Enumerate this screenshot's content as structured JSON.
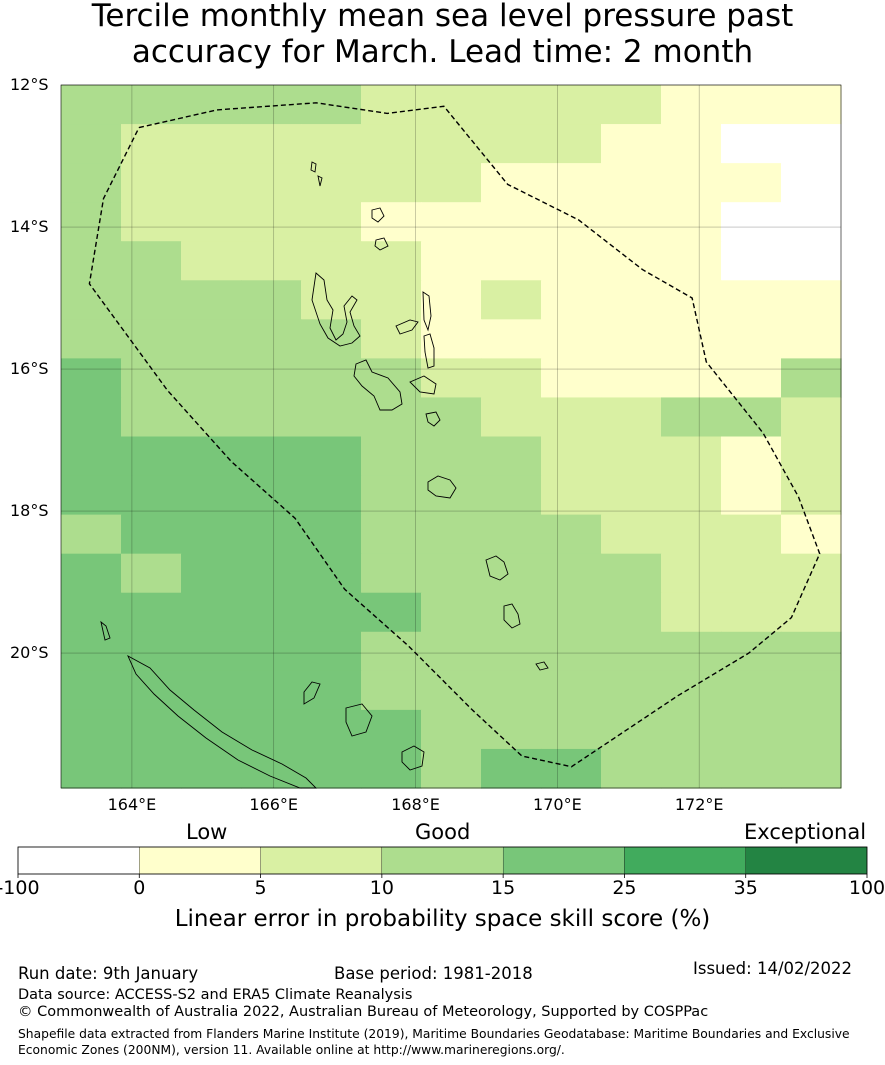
{
  "title_line1": "Tercile monthly mean sea level pressure past",
  "title_line2": "accuracy for March. Lead time: 2 month",
  "map": {
    "lon_range": [
      163.0,
      174.0
    ],
    "lat_range": [
      -21.9,
      -12.0
    ],
    "lat_ticks": [
      {
        "value": -12,
        "label": "12°S"
      },
      {
        "value": -14,
        "label": "14°S"
      },
      {
        "value": -16,
        "label": "16°S"
      },
      {
        "value": -18,
        "label": "18°S"
      },
      {
        "value": -20,
        "label": "20°S"
      }
    ],
    "lon_ticks": [
      {
        "value": 164,
        "label": "164°E"
      },
      {
        "value": 166,
        "label": "166°E"
      },
      {
        "value": 168,
        "label": "168°E"
      },
      {
        "value": 170,
        "label": "170°E"
      },
      {
        "value": 172,
        "label": "172°E"
      }
    ],
    "grid_cols": 13,
    "grid_rows": 18,
    "grid_note": "class index per cell: 0=<0, 1=0-5, 2=5-10, 3=10-15, 4=15-25, 5=25-35, 6=35-100",
    "grid": [
      "3333322222111",
      "3222222221100",
      "3222222111110",
      "3222211111100",
      "3322221111100",
      "3333221211111",
      "3333321111111",
      "4333332211113",
      "4333333222332",
      "4444433322212",
      "4444433322212",
      "3444433332221",
      "4344433333222",
      "4444443333222",
      "4444433333333",
      "4444433333333",
      "4444443333333",
      "4444443443333"
    ],
    "eez_boundary": [
      [
        164.1,
        -12.6
      ],
      [
        165.2,
        -12.35
      ],
      [
        166.6,
        -12.25
      ],
      [
        167.6,
        -12.4
      ],
      [
        168.4,
        -12.3
      ],
      [
        169.3,
        -13.4
      ],
      [
        170.3,
        -13.9
      ],
      [
        171.2,
        -14.6
      ],
      [
        171.9,
        -15.0
      ],
      [
        172.1,
        -15.9
      ],
      [
        172.9,
        -16.9
      ],
      [
        173.4,
        -17.8
      ],
      [
        173.7,
        -18.6
      ],
      [
        173.3,
        -19.5
      ],
      [
        172.7,
        -20.0
      ],
      [
        171.7,
        -20.6
      ],
      [
        170.8,
        -21.2
      ],
      [
        170.2,
        -21.6
      ],
      [
        169.5,
        -21.45
      ],
      [
        168.8,
        -20.8
      ],
      [
        167.9,
        -19.9
      ],
      [
        167.0,
        -19.1
      ],
      [
        166.3,
        -18.1
      ],
      [
        165.4,
        -17.3
      ],
      [
        164.5,
        -16.3
      ],
      [
        163.4,
        -14.8
      ],
      [
        163.6,
        -13.6
      ],
      [
        164.1,
        -12.6
      ]
    ]
  },
  "colorbar": {
    "words": [
      "Low",
      "Good",
      "Exceptional"
    ],
    "tick_labels": [
      "-100",
      "0",
      "5",
      "10",
      "15",
      "25",
      "35",
      "100"
    ],
    "colors": [
      "#ffffff",
      "#ffffcc",
      "#d9f0a3",
      "#addd8e",
      "#78c679",
      "#41ab5d",
      "#238443"
    ],
    "label": "Linear error in probability space skill score (%)"
  },
  "footer": {
    "run_date": "Run date: 9th January",
    "base_period": "Base period: 1981-2018",
    "issued": "Issued: 14/02/2022",
    "data_source": "Data source: ACCESS-S2 and ERA5 Climate Reanalysis",
    "copyright": "© Commonwealth of Australia 2022, Australian Bureau of Meteorology, Supported by COSPPac",
    "shapefile_line1": "Shapefile data extracted from Flanders Marine Institute (2019), Maritime Boundaries Geodatabase: Maritime Boundaries and Exclusive",
    "shapefile_line2": "Economic Zones (200NM), version 11. Available online at http://www.marineregions.org/."
  }
}
